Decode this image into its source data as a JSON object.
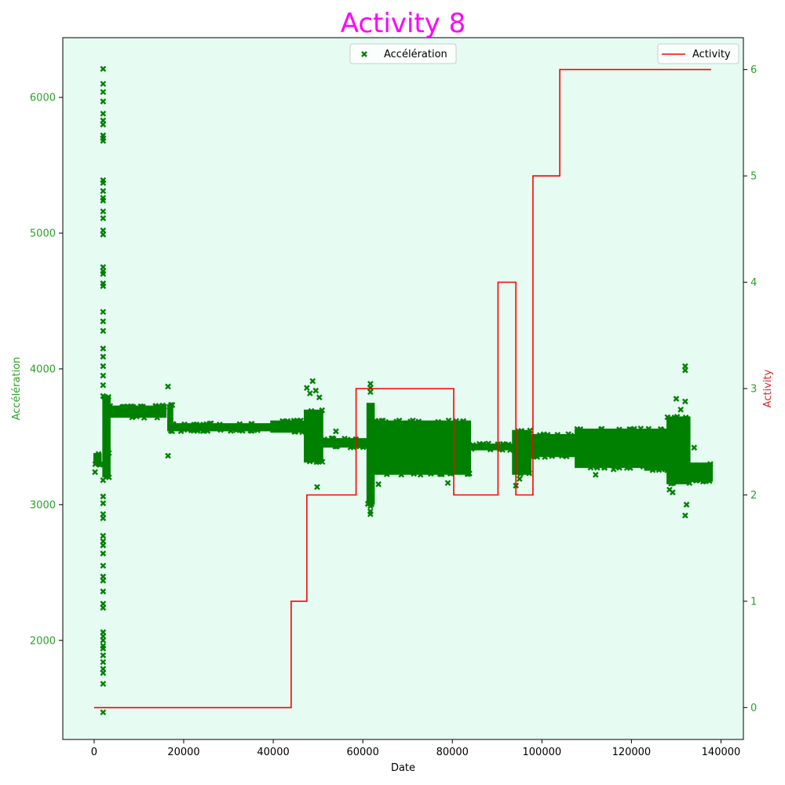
{
  "chart_data": {
    "type": "scatter",
    "title": "Activity 8",
    "xlabel": "Date",
    "ylabel_left": "Accélération",
    "ylabel_right": "Activity",
    "xlim": [
      -7000,
      145000
    ],
    "ylim_left": [
      1270,
      6440
    ],
    "ylim_right": [
      -0.3,
      6.3
    ],
    "x_ticks": [
      0,
      20000,
      40000,
      60000,
      80000,
      100000,
      120000,
      140000
    ],
    "y_left_ticks": [
      2000,
      3000,
      4000,
      5000,
      6000
    ],
    "y_right_ticks": [
      0,
      1,
      2,
      3,
      4,
      5,
      6
    ],
    "grid": false,
    "colors": {
      "plot_background": "#e6fcf3",
      "scatter": "#008000",
      "activity_line": "#ff0000",
      "left_axis": "#2ca02c",
      "right_axis_ticks": "#2ca02c",
      "right_label": "#d62728",
      "title": "#ff00ff"
    },
    "series": [
      {
        "name": "Accélération",
        "kind": "scatter",
        "marker": "x",
        "axis": "left",
        "bands": [
          {
            "x0": 0,
            "x1": 1500,
            "y_low": 3290,
            "y_high": 3380
          },
          {
            "x0": 2000,
            "x1": 3500,
            "y_low": 3200,
            "y_high": 3800
          },
          {
            "x0": 3500,
            "x1": 16000,
            "y_low": 3640,
            "y_high": 3730
          },
          {
            "x0": 16500,
            "x1": 17500,
            "y_low": 3540,
            "y_high": 3740
          },
          {
            "x0": 17500,
            "x1": 39500,
            "y_low": 3540,
            "y_high": 3600
          },
          {
            "x0": 39500,
            "x1": 47000,
            "y_low": 3530,
            "y_high": 3620
          },
          {
            "x0": 47000,
            "x1": 51000,
            "y_low": 3310,
            "y_high": 3700
          },
          {
            "x0": 51000,
            "x1": 61000,
            "y_low": 3420,
            "y_high": 3490
          },
          {
            "x0": 61000,
            "x1": 62500,
            "y_low": 3000,
            "y_high": 3750
          },
          {
            "x0": 62500,
            "x1": 84000,
            "y_low": 3220,
            "y_high": 3620
          },
          {
            "x0": 84000,
            "x1": 93500,
            "y_low": 3400,
            "y_high": 3450
          },
          {
            "x0": 93500,
            "x1": 97500,
            "y_low": 3220,
            "y_high": 3550
          },
          {
            "x0": 97500,
            "x1": 107500,
            "y_low": 3350,
            "y_high": 3520
          },
          {
            "x0": 107500,
            "x1": 123000,
            "y_low": 3270,
            "y_high": 3560
          },
          {
            "x0": 123000,
            "x1": 128000,
            "y_low": 3250,
            "y_high": 3560
          },
          {
            "x0": 128000,
            "x1": 133000,
            "y_low": 3150,
            "y_high": 3650
          },
          {
            "x0": 133000,
            "x1": 138000,
            "y_low": 3170,
            "y_high": 3310
          }
        ],
        "points": [
          {
            "x": 2000,
            "y": 6210
          },
          {
            "x": 2000,
            "y": 6100
          },
          {
            "x": 2000,
            "y": 6040
          },
          {
            "x": 2000,
            "y": 5970
          },
          {
            "x": 2000,
            "y": 5880
          },
          {
            "x": 2000,
            "y": 5830
          },
          {
            "x": 2000,
            "y": 5800
          },
          {
            "x": 2000,
            "y": 5720
          },
          {
            "x": 2000,
            "y": 5700
          },
          {
            "x": 2000,
            "y": 5680
          },
          {
            "x": 2000,
            "y": 5390
          },
          {
            "x": 2000,
            "y": 5370
          },
          {
            "x": 2000,
            "y": 5310
          },
          {
            "x": 2000,
            "y": 5260
          },
          {
            "x": 2000,
            "y": 5240
          },
          {
            "x": 2000,
            "y": 5160
          },
          {
            "x": 2000,
            "y": 5110
          },
          {
            "x": 2000,
            "y": 5020
          },
          {
            "x": 2000,
            "y": 4990
          },
          {
            "x": 2000,
            "y": 4750
          },
          {
            "x": 2000,
            "y": 4720
          },
          {
            "x": 2000,
            "y": 4700
          },
          {
            "x": 2000,
            "y": 4630
          },
          {
            "x": 2000,
            "y": 4610
          },
          {
            "x": 2000,
            "y": 4420
          },
          {
            "x": 2000,
            "y": 4350
          },
          {
            "x": 2000,
            "y": 4280
          },
          {
            "x": 2000,
            "y": 4150
          },
          {
            "x": 2000,
            "y": 4090
          },
          {
            "x": 2000,
            "y": 4020
          },
          {
            "x": 2000,
            "y": 3950
          },
          {
            "x": 2000,
            "y": 3880
          },
          {
            "x": 2000,
            "y": 3800
          },
          {
            "x": 2000,
            "y": 3180
          },
          {
            "x": 2000,
            "y": 3060
          },
          {
            "x": 2000,
            "y": 3010
          },
          {
            "x": 2000,
            "y": 2930
          },
          {
            "x": 2000,
            "y": 2900
          },
          {
            "x": 2000,
            "y": 2770
          },
          {
            "x": 2000,
            "y": 2730
          },
          {
            "x": 2000,
            "y": 2700
          },
          {
            "x": 2000,
            "y": 2640
          },
          {
            "x": 2000,
            "y": 2550
          },
          {
            "x": 2000,
            "y": 2470
          },
          {
            "x": 2000,
            "y": 2440
          },
          {
            "x": 2000,
            "y": 2360
          },
          {
            "x": 2000,
            "y": 2270
          },
          {
            "x": 2000,
            "y": 2240
          },
          {
            "x": 2000,
            "y": 2060
          },
          {
            "x": 2000,
            "y": 2030
          },
          {
            "x": 2000,
            "y": 2000
          },
          {
            "x": 2000,
            "y": 1960
          },
          {
            "x": 2000,
            "y": 1940
          },
          {
            "x": 2000,
            "y": 1890
          },
          {
            "x": 2000,
            "y": 1840
          },
          {
            "x": 2000,
            "y": 1790
          },
          {
            "x": 2000,
            "y": 1760
          },
          {
            "x": 2000,
            "y": 1680
          },
          {
            "x": 2000,
            "y": 1470
          },
          {
            "x": 200,
            "y": 3240
          },
          {
            "x": 3300,
            "y": 3380
          },
          {
            "x": 16500,
            "y": 3870
          },
          {
            "x": 16500,
            "y": 3360
          },
          {
            "x": 47500,
            "y": 3860
          },
          {
            "x": 48200,
            "y": 3820
          },
          {
            "x": 48800,
            "y": 3910
          },
          {
            "x": 49500,
            "y": 3840
          },
          {
            "x": 50300,
            "y": 3790
          },
          {
            "x": 49800,
            "y": 3130
          },
          {
            "x": 54000,
            "y": 3540
          },
          {
            "x": 61700,
            "y": 3890
          },
          {
            "x": 61700,
            "y": 3860
          },
          {
            "x": 61700,
            "y": 3830
          },
          {
            "x": 61700,
            "y": 2990
          },
          {
            "x": 61700,
            "y": 2950
          },
          {
            "x": 61700,
            "y": 2930
          },
          {
            "x": 63500,
            "y": 3150
          },
          {
            "x": 79000,
            "y": 3160
          },
          {
            "x": 94200,
            "y": 3140
          },
          {
            "x": 95000,
            "y": 3190
          },
          {
            "x": 112000,
            "y": 3220
          },
          {
            "x": 116000,
            "y": 3260
          },
          {
            "x": 128500,
            "y": 3110
          },
          {
            "x": 129200,
            "y": 3090
          },
          {
            "x": 130000,
            "y": 3780
          },
          {
            "x": 131000,
            "y": 3700
          },
          {
            "x": 132000,
            "y": 4020
          },
          {
            "x": 132000,
            "y": 3990
          },
          {
            "x": 132000,
            "y": 3760
          },
          {
            "x": 132000,
            "y": 2920
          },
          {
            "x": 132300,
            "y": 3000
          },
          {
            "x": 134000,
            "y": 3420
          },
          {
            "x": 136000,
            "y": 3170
          }
        ]
      },
      {
        "name": "Activity",
        "kind": "step",
        "axis": "right",
        "x": [
          0,
          44000,
          44000,
          47500,
          47500,
          58500,
          58500,
          80300,
          80300,
          90200,
          90200,
          94200,
          94200,
          98000,
          98000,
          104000,
          104000,
          137800
        ],
        "y": [
          0,
          0,
          1,
          1,
          2,
          2,
          3,
          3,
          2,
          2,
          4,
          4,
          2,
          2,
          5,
          5,
          6,
          6
        ]
      }
    ],
    "legends": [
      {
        "label": "Accélération",
        "placement": "upper-center"
      },
      {
        "label": "Activity",
        "placement": "upper-right"
      }
    ]
  }
}
